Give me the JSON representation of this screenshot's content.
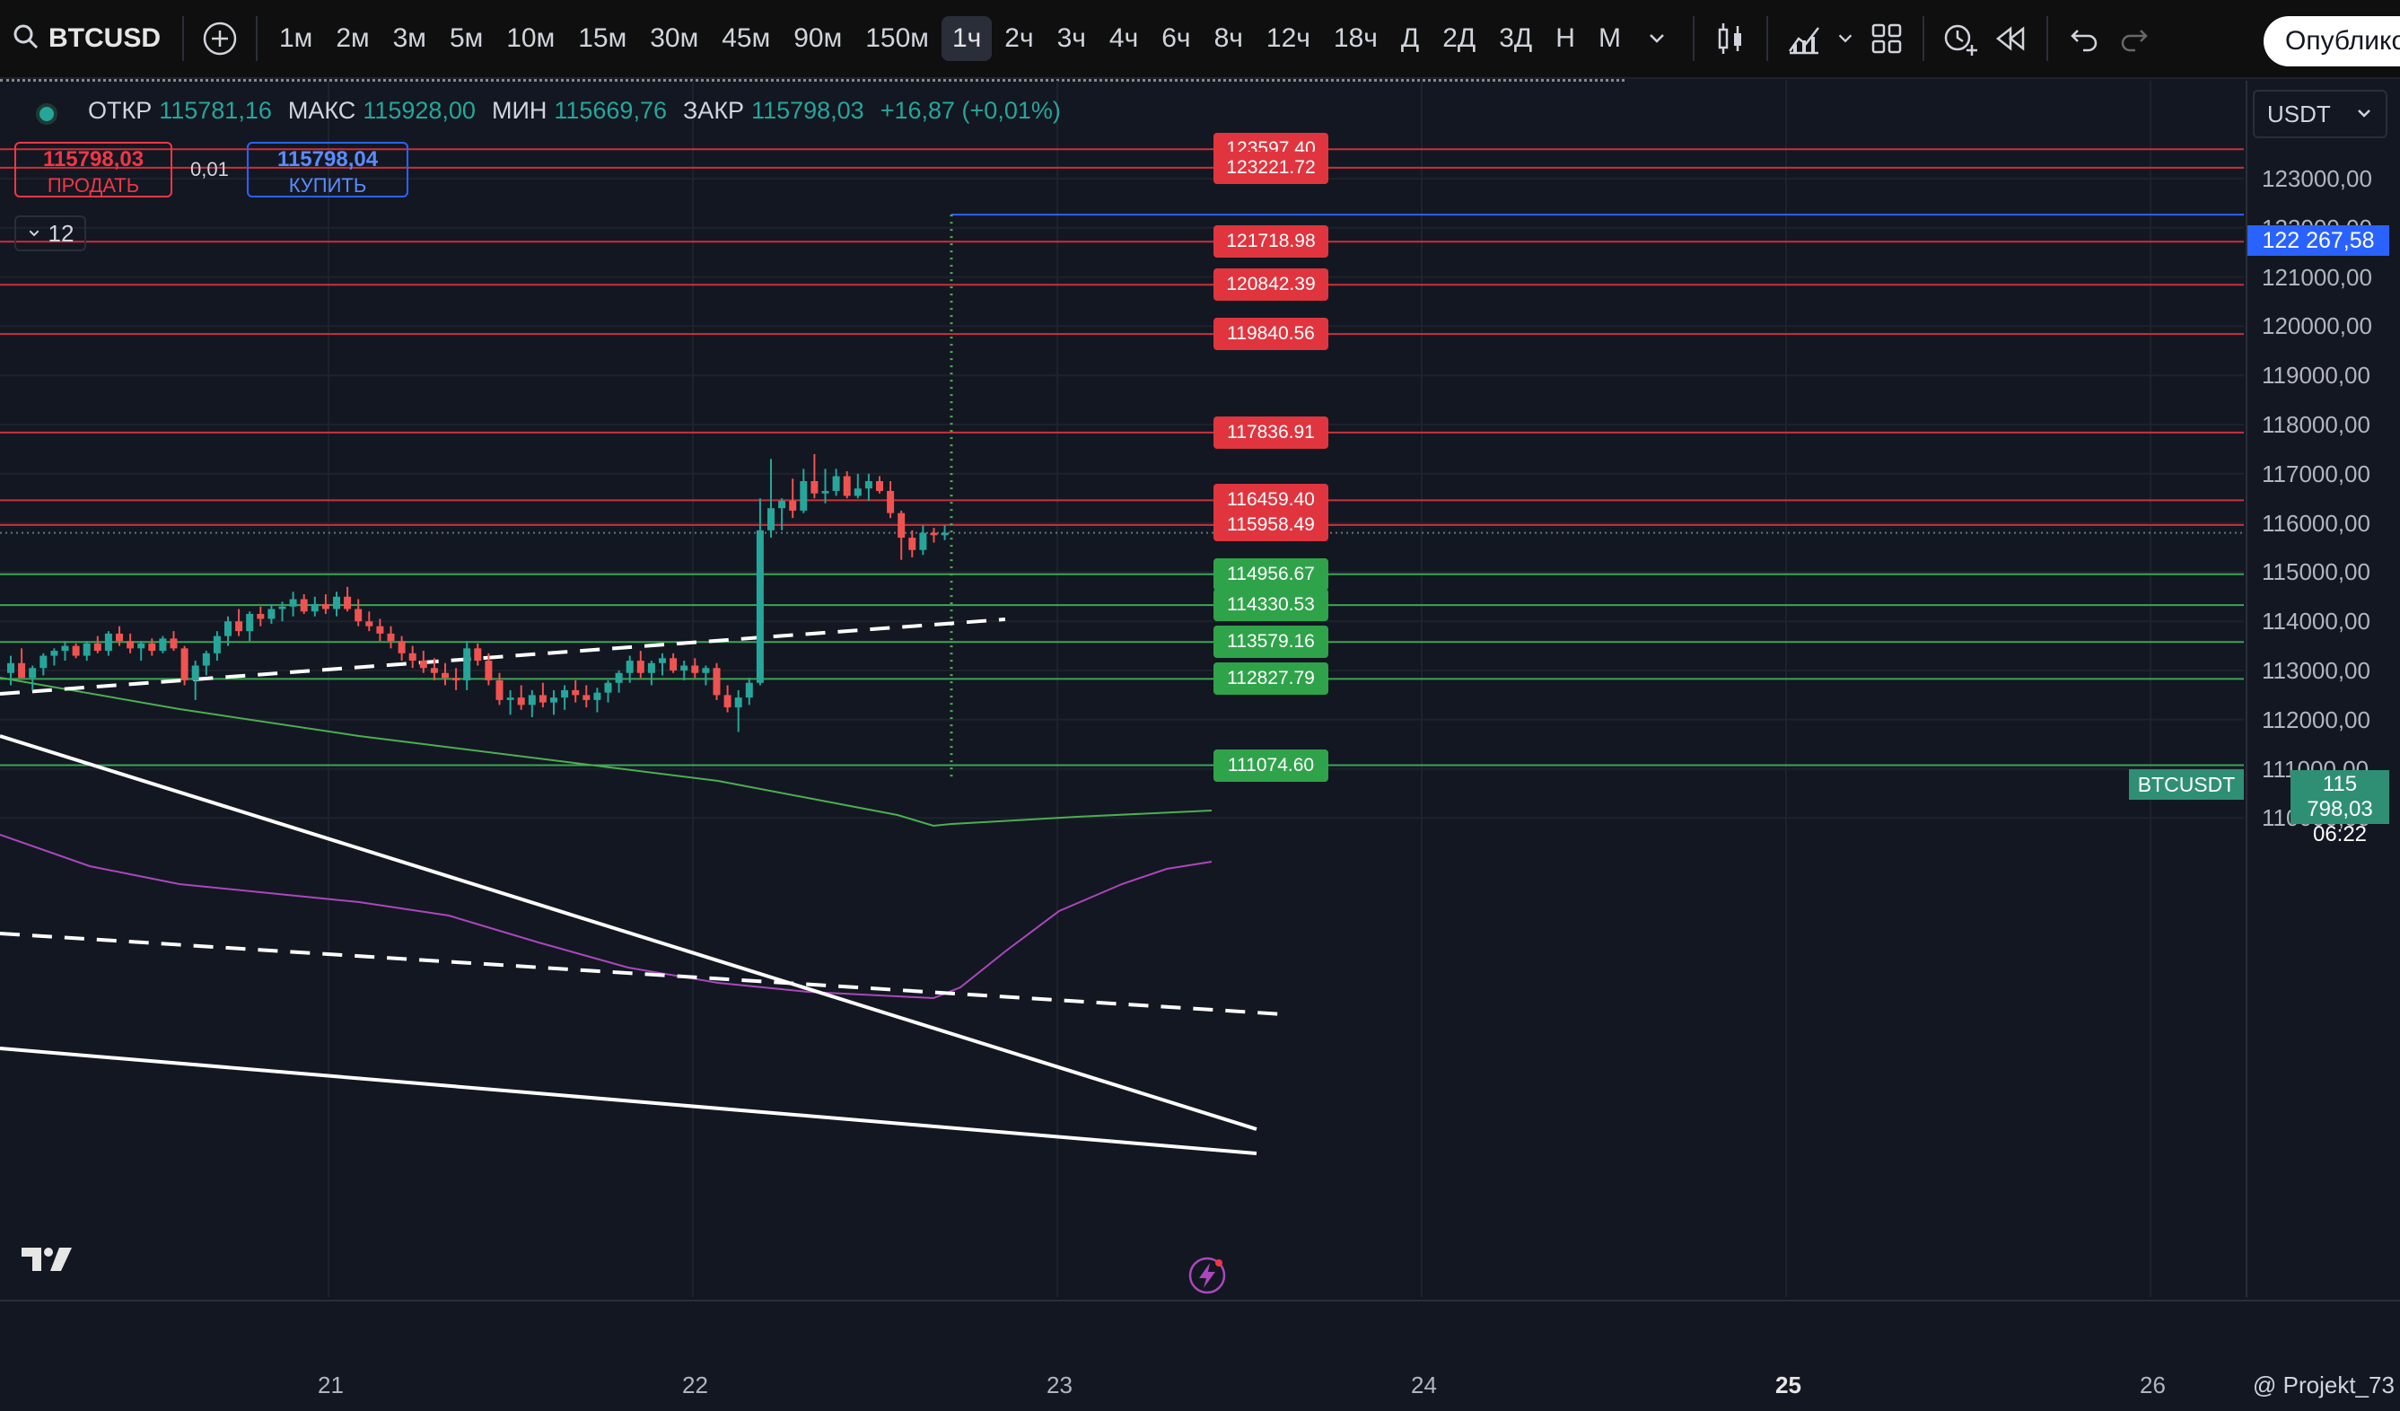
{
  "toolbar": {
    "symbol": "BTCUSD",
    "intervals": [
      "1м",
      "2м",
      "3м",
      "5м",
      "10м",
      "15м",
      "30м",
      "45м",
      "90м",
      "150м",
      "1ч",
      "2ч",
      "3ч",
      "4ч",
      "6ч",
      "8ч",
      "12ч",
      "18ч",
      "Д",
      "2Д",
      "3Д",
      "Н",
      "М"
    ],
    "active_interval": "1ч",
    "publish_label": "Опублико"
  },
  "legend": {
    "open_label": "ОТКР",
    "open": "115781,16",
    "high_label": "МАКС",
    "high": "115928,00",
    "low_label": "МИН",
    "low": "115669,76",
    "close_label": "ЗАКР",
    "close": "115798,03",
    "change": "+16,87 (+0,01%)"
  },
  "trade": {
    "sell_price": "115798,03",
    "sell_label": "ПРОДАТЬ",
    "spread": "0,01",
    "buy_price": "115798,04",
    "buy_label": "КУПИТЬ"
  },
  "indicators_badge": "12",
  "currency": "USDT",
  "price_axis_labels": [
    "123000,00",
    "122000,00",
    "121000,00",
    "120000,00",
    "119000,00",
    "118000,00",
    "117000,00",
    "116000,00",
    "115000,00",
    "114000,00",
    "113000,00",
    "112000,00",
    "111000,00",
    "110000,00"
  ],
  "time_axis_labels": [
    "21",
    "22",
    "23",
    "24",
    "25",
    "26"
  ],
  "levels_red": [
    "123597.40",
    "123221.72",
    "121718.98",
    "120842.39",
    "119840.56",
    "117836.91",
    "116459.40",
    "115958.49"
  ],
  "levels_green": [
    "114956.67",
    "114330.53",
    "113579.16",
    "112827.79",
    "111074.60"
  ],
  "flag_blue": "122 267,58",
  "flag_symbol": "BTCUSDT",
  "flag_price": "115 798,03",
  "flag_timer": "06:22",
  "watermark": "@ Projekt_73",
  "colors": {
    "bg": "#131722",
    "up": "#26a69a",
    "down": "#ef5350",
    "red_level": "#e0353f",
    "green_level": "#2fa34a",
    "blue": "#2962ff"
  },
  "icons": [
    "search-icon",
    "add-symbol-icon",
    "chevron-down-icon",
    "candles-icon",
    "indicators-icon",
    "layout-icon",
    "alert-icon",
    "replay-icon",
    "undo-icon",
    "redo-icon",
    "tradingview-logo-icon",
    "flash-icon"
  ]
}
